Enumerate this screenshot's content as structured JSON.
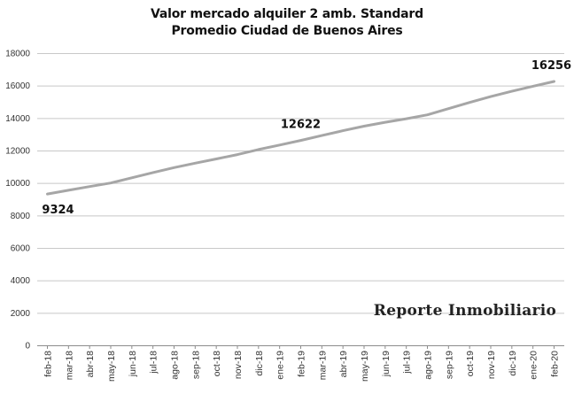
{
  "chart_data": {
    "type": "line",
    "title": "Valor mercado alquiler 2 amb. Standard",
    "subtitle": "Promedio Ciudad de Buenos Aires",
    "xlabel": "",
    "ylabel": "",
    "ylim": [
      0,
      18000
    ],
    "yticks": [
      0,
      2000,
      4000,
      6000,
      8000,
      10000,
      12000,
      14000,
      16000,
      18000
    ],
    "grid": true,
    "legend": "none",
    "categories": [
      "feb-18",
      "mar-18",
      "abr-18",
      "may-18",
      "jun-18",
      "jul-18",
      "ago-18",
      "sep-18",
      "oct-18",
      "nov-18",
      "dic-18",
      "ene-19",
      "feb-19",
      "mar-19",
      "abr-19",
      "may-19",
      "jun-19",
      "jul-19",
      "ago-19",
      "sep-19",
      "oct-19",
      "nov-19",
      "dic-19",
      "ene-20",
      "feb-20"
    ],
    "series": [
      {
        "name": "Valor mercado alquiler 2 amb.",
        "color": "#a6a6a6",
        "values": [
          9324,
          9550,
          9780,
          10000,
          10320,
          10640,
          10950,
          11220,
          11480,
          11750,
          12060,
          12340,
          12622,
          12920,
          13220,
          13500,
          13740,
          13960,
          14200,
          14580,
          14960,
          15320,
          15650,
          15960,
          16256
        ]
      }
    ],
    "annotations": [
      {
        "category": "feb-18",
        "text": "9324"
      },
      {
        "category": "feb-19",
        "text": "12622"
      },
      {
        "category": "feb-20",
        "text": "16256"
      }
    ],
    "watermark": "Reporte Inmobiliario"
  }
}
